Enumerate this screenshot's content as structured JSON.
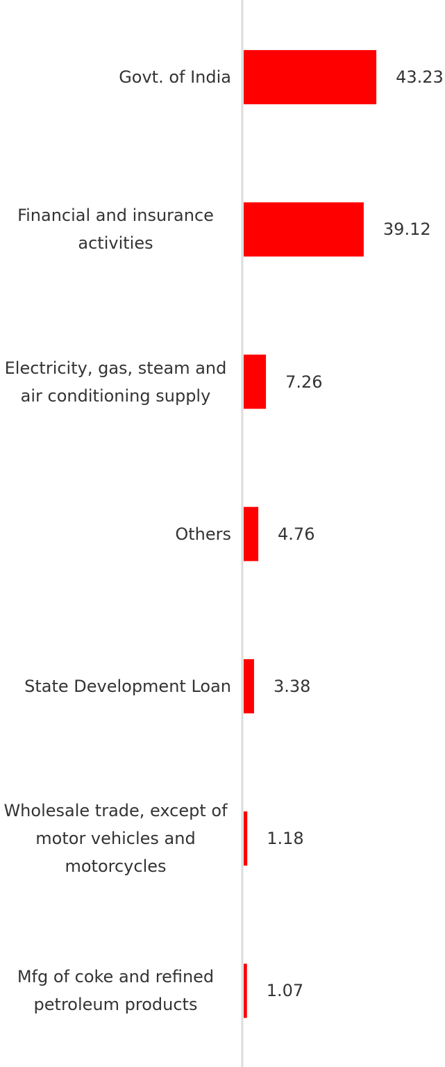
{
  "chart_data": {
    "type": "bar",
    "orientation": "horizontal",
    "categories": [
      "Govt. of India",
      "Financial and insurance activities",
      "Electricity, gas, steam and air conditioning supply",
      "Others",
      "State Development Loan",
      "Wholesale trade, except of motor vehicles and motorcycles",
      "Mfg of coke and refined petroleum products"
    ],
    "values": [
      43.23,
      39.12,
      7.26,
      4.76,
      3.38,
      1.18,
      1.07
    ],
    "color": "#ff0000",
    "xlim": [
      0,
      50
    ]
  }
}
